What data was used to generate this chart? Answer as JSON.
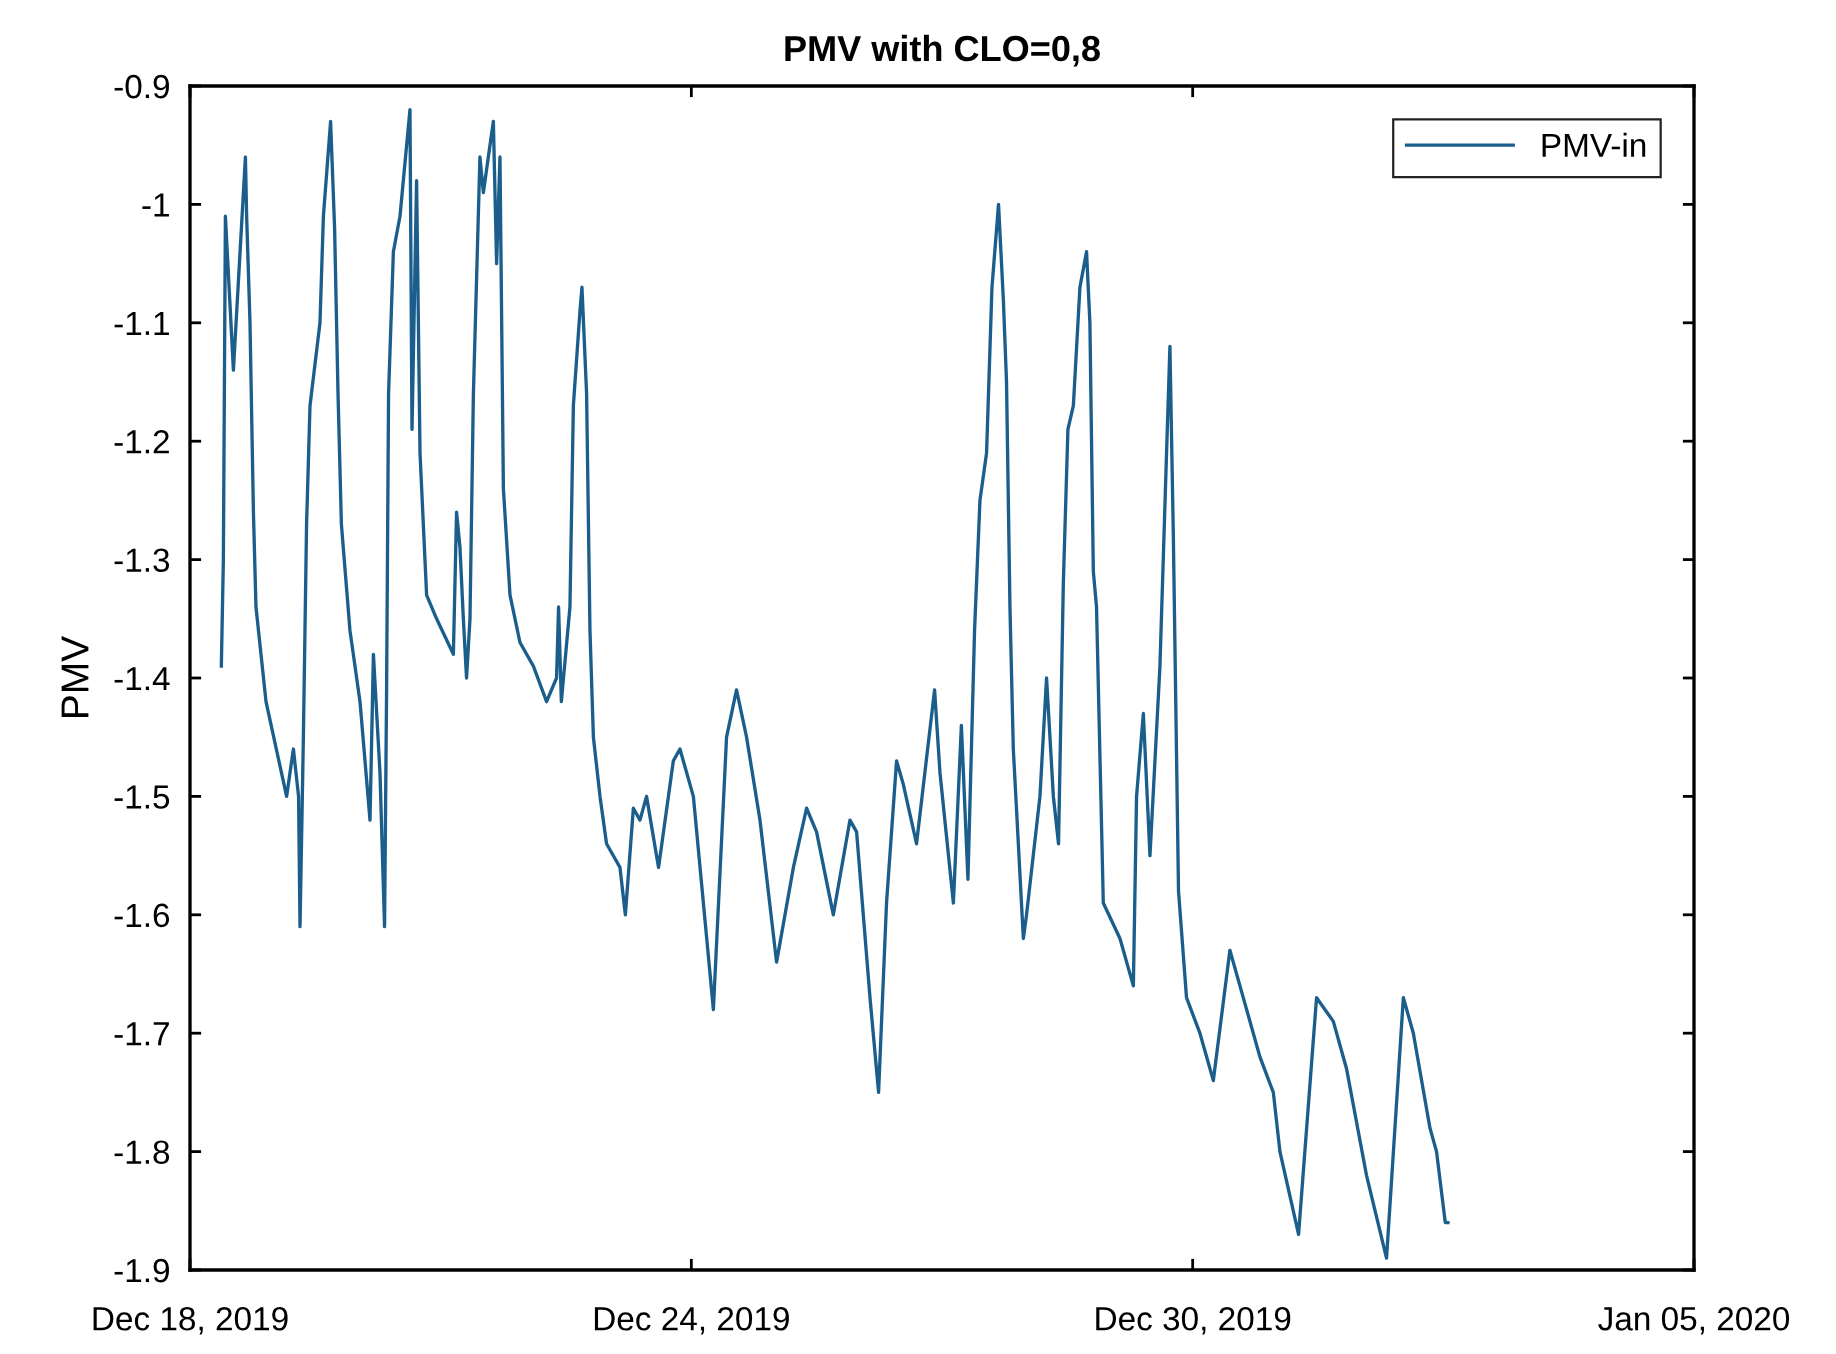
{
  "chart_data": {
    "type": "line",
    "title": "PMV with CLO=0,8",
    "ylabel": "PMV",
    "x": [
      "2019-12-18T09:00",
      "2019-12-18T09:35",
      "2019-12-18T10:10",
      "2019-12-18T12:28",
      "2019-12-18T15:55",
      "2019-12-18T16:16",
      "2019-12-18T17:14",
      "2019-12-18T18:13",
      "2019-12-18T18:57",
      "2019-12-18T21:50",
      "2019-12-19T03:45",
      "2019-12-19T05:42",
      "2019-12-19T07:11",
      "2019-12-19T07:36",
      "2019-12-19T08:34",
      "2019-12-19T09:29",
      "2019-12-19T10:28",
      "2019-12-19T13:20",
      "2019-12-19T14:19",
      "2019-12-19T16:23",
      "2019-12-19T17:32",
      "2019-12-19T18:31",
      "2019-12-19T19:29",
      "2019-12-19T21:57",
      "2019-12-20T00:50",
      "2019-12-20T03:42",
      "2019-12-20T04:41",
      "2019-12-20T06:34",
      "2019-12-20T07:53",
      "2019-12-20T08:28",
      "2019-12-20T09:02",
      "2019-12-20T10:25",
      "2019-12-20T12:19",
      "2019-12-20T15:11",
      "2019-12-20T15:46",
      "2019-12-20T17:05",
      "2019-12-20T18:04",
      "2019-12-20T19:58",
      "2019-12-20T22:50",
      "2019-12-21T03:39",
      "2019-12-21T04:34",
      "2019-12-21T05:33",
      "2019-12-21T06:31",
      "2019-12-21T07:26",
      "2019-12-21T08:25",
      "2019-12-21T09:24",
      "2019-12-21T11:17",
      "2019-12-21T12:16",
      "2019-12-21T14:10",
      "2019-12-21T15:08",
      "2019-12-21T16:04",
      "2019-12-21T17:02",
      "2019-12-21T18:01",
      "2019-12-21T19:55",
      "2019-12-21T22:47",
      "2019-12-22T02:38",
      "2019-12-22T06:25",
      "2019-12-22T09:17",
      "2019-12-22T09:52",
      "2019-12-22T10:40",
      "2019-12-22T13:08",
      "2019-12-22T14:07",
      "2019-12-22T16:01",
      "2019-12-22T16:35",
      "2019-12-22T17:55",
      "2019-12-22T18:53",
      "2019-12-22T19:52",
      "2019-12-22T21:46",
      "2019-12-22T23:39",
      "2019-12-23T03:30",
      "2019-12-23T05:03",
      "2019-12-23T07:21",
      "2019-12-23T09:15",
      "2019-12-23T11:08",
      "2019-12-23T14:35",
      "2019-12-23T18:50",
      "2019-12-23T20:44",
      "2019-12-24T00:35",
      "2019-12-24T06:20",
      "2019-12-24T10:07",
      "2019-12-24T12:59",
      "2019-12-24T15:52",
      "2019-12-24T19:43",
      "2019-12-25T00:29",
      "2019-12-25T05:19",
      "2019-12-25T09:06",
      "2019-12-25T11:58",
      "2019-12-25T16:47",
      "2019-12-25T21:34",
      "2019-12-25T23:28",
      "2019-12-26T03:19",
      "2019-12-26T05:47",
      "2019-12-26T08:04",
      "2019-12-26T10:57",
      "2019-12-26T12:54",
      "2019-12-26T16:41",
      "2019-12-26T21:52",
      "2019-12-26T23:25",
      "2019-12-27T03:16",
      "2019-12-27T05:34",
      "2019-12-27T07:27",
      "2019-12-27T09:21",
      "2019-12-27T10:54",
      "2019-12-27T12:48",
      "2019-12-27T14:21",
      "2019-12-27T16:14",
      "2019-12-27T17:37",
      "2019-12-27T18:32",
      "2019-12-27T19:31",
      "2019-12-27T20:29",
      "2019-12-27T23:22",
      "2019-12-28T00:17",
      "2019-12-28T04:08",
      "2019-12-28T06:02",
      "2019-12-28T07:59",
      "2019-12-28T09:28",
      "2019-12-28T10:51",
      "2019-12-28T12:10",
      "2019-12-28T13:44",
      "2019-12-28T15:37",
      "2019-12-28T17:31",
      "2019-12-28T18:29",
      "2019-12-28T19:28",
      "2019-12-28T20:23",
      "2019-12-28T22:20",
      "2019-12-29T03:07",
      "2019-12-29T06:58",
      "2019-12-29T07:53",
      "2019-12-29T09:50",
      "2019-12-29T11:44",
      "2019-12-29T14:36",
      "2019-12-29T16:30",
      "2019-12-29T17:28",
      "2019-12-29T18:27",
      "2019-12-29T19:56",
      "2019-12-29T22:14",
      "2019-12-30T02:05",
      "2019-12-30T05:56",
      "2019-12-30T10:42",
      "2019-12-30T13:35",
      "2019-12-30T19:19",
      "2019-12-30T23:10",
      "2019-12-31T01:04",
      "2019-12-31T06:25",
      "2019-12-31T11:35",
      "2019-12-31T16:24",
      "2019-12-31T20:12",
      "2020-01-01T01:56",
      "2020-01-01T07:41",
      "2020-01-01T12:31",
      "2020-01-01T15:23",
      "2020-01-01T20:09",
      "2020-01-01T22:03",
      "2020-01-02T00:34",
      "2020-01-02T01:19"
    ],
    "series": [
      {
        "name": "PMV-in",
        "color": "#1b5e8c",
        "values": [
          -1.39,
          -1.3,
          -1.01,
          -1.14,
          -0.96,
          -1.01,
          -1.1,
          -1.26,
          -1.34,
          -1.42,
          -1.5,
          -1.46,
          -1.5,
          -1.61,
          -1.45,
          -1.27,
          -1.17,
          -1.1,
          -1.01,
          -0.93,
          -1.02,
          -1.16,
          -1.27,
          -1.36,
          -1.42,
          -1.52,
          -1.38,
          -1.48,
          -1.61,
          -1.41,
          -1.16,
          -1.04,
          -1.01,
          -0.92,
          -1.19,
          -0.98,
          -1.21,
          -1.33,
          -1.35,
          -1.38,
          -1.26,
          -1.29,
          -1.35,
          -1.4,
          -1.35,
          -1.16,
          -0.96,
          -0.99,
          -0.95,
          -0.93,
          -1.05,
          -0.96,
          -1.24,
          -1.33,
          -1.37,
          -1.39,
          -1.42,
          -1.4,
          -1.34,
          -1.42,
          -1.34,
          -1.17,
          -1.09,
          -1.07,
          -1.16,
          -1.36,
          -1.45,
          -1.5,
          -1.54,
          -1.56,
          -1.6,
          -1.51,
          -1.52,
          -1.5,
          -1.56,
          -1.47,
          -1.46,
          -1.5,
          -1.68,
          -1.45,
          -1.41,
          -1.45,
          -1.52,
          -1.64,
          -1.56,
          -1.51,
          -1.53,
          -1.6,
          -1.52,
          -1.53,
          -1.67,
          -1.75,
          -1.59,
          -1.47,
          -1.49,
          -1.54,
          -1.41,
          -1.48,
          -1.59,
          -1.44,
          -1.57,
          -1.36,
          -1.25,
          -1.21,
          -1.07,
          -1.0,
          -1.08,
          -1.15,
          -1.34,
          -1.46,
          -1.62,
          -1.6,
          -1.5,
          -1.4,
          -1.5,
          -1.54,
          -1.32,
          -1.19,
          -1.17,
          -1.07,
          -1.04,
          -1.1,
          -1.31,
          -1.34,
          -1.59,
          -1.62,
          -1.66,
          -1.5,
          -1.43,
          -1.55,
          -1.39,
          -1.21,
          -1.12,
          -1.28,
          -1.58,
          -1.67,
          -1.7,
          -1.74,
          -1.63,
          -1.66,
          -1.72,
          -1.75,
          -1.8,
          -1.87,
          -1.67,
          -1.69,
          -1.73,
          -1.82,
          -1.89,
          -1.67,
          -1.7,
          -1.78,
          -1.8,
          -1.86,
          -1.86
        ]
      }
    ],
    "xlim": [
      "2019-12-18",
      "2020-01-05"
    ],
    "xticks": [
      {
        "value": "2019-12-18",
        "label": "Dec 18, 2019"
      },
      {
        "value": "2019-12-24",
        "label": "Dec 24, 2019"
      },
      {
        "value": "2019-12-30",
        "label": "Dec 30, 2019"
      },
      {
        "value": "2020-01-05",
        "label": "Jan 05, 2020"
      }
    ],
    "ylim": [
      -1.9,
      -0.9
    ],
    "yticks": [
      -0.9,
      -1,
      -1.1,
      -1.2,
      -1.3,
      -1.4,
      -1.5,
      -1.6,
      -1.7,
      -1.8,
      -1.9
    ],
    "legend": "top right",
    "marker": "none",
    "line_style": "solid",
    "grid": false
  }
}
